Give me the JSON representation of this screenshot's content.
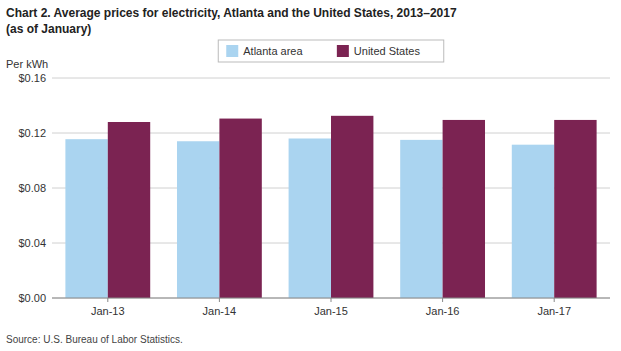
{
  "chart_data": {
    "type": "bar",
    "title": "Chart 2.  Average prices for electricity, Atlanta  and the United States, 2013–2017",
    "subtitle": "(as of January)",
    "y_label": "Per kWh",
    "source": "Source: U.S. Bureau of Labor Statistics.",
    "categories": [
      "Jan-13",
      "Jan-14",
      "Jan-15",
      "Jan-16",
      "Jan-17"
    ],
    "series": [
      {
        "name": "Atlanta area",
        "color": "#aad4f0",
        "values": [
          0.1155,
          0.114,
          0.116,
          0.115,
          0.1115
        ]
      },
      {
        "name": "United States",
        "color": "#7b2352",
        "values": [
          0.128,
          0.1305,
          0.1325,
          0.1295,
          0.1295
        ]
      }
    ],
    "ylim": [
      0.0,
      0.16
    ],
    "yticks": [
      {
        "value": 0.0,
        "label": "$0.00"
      },
      {
        "value": 0.04,
        "label": "$0.04"
      },
      {
        "value": 0.08,
        "label": "$0.08"
      },
      {
        "value": 0.12,
        "label": "$0.12"
      },
      {
        "value": 0.16,
        "label": "$0.16"
      }
    ],
    "grid": true,
    "legend": "top"
  }
}
